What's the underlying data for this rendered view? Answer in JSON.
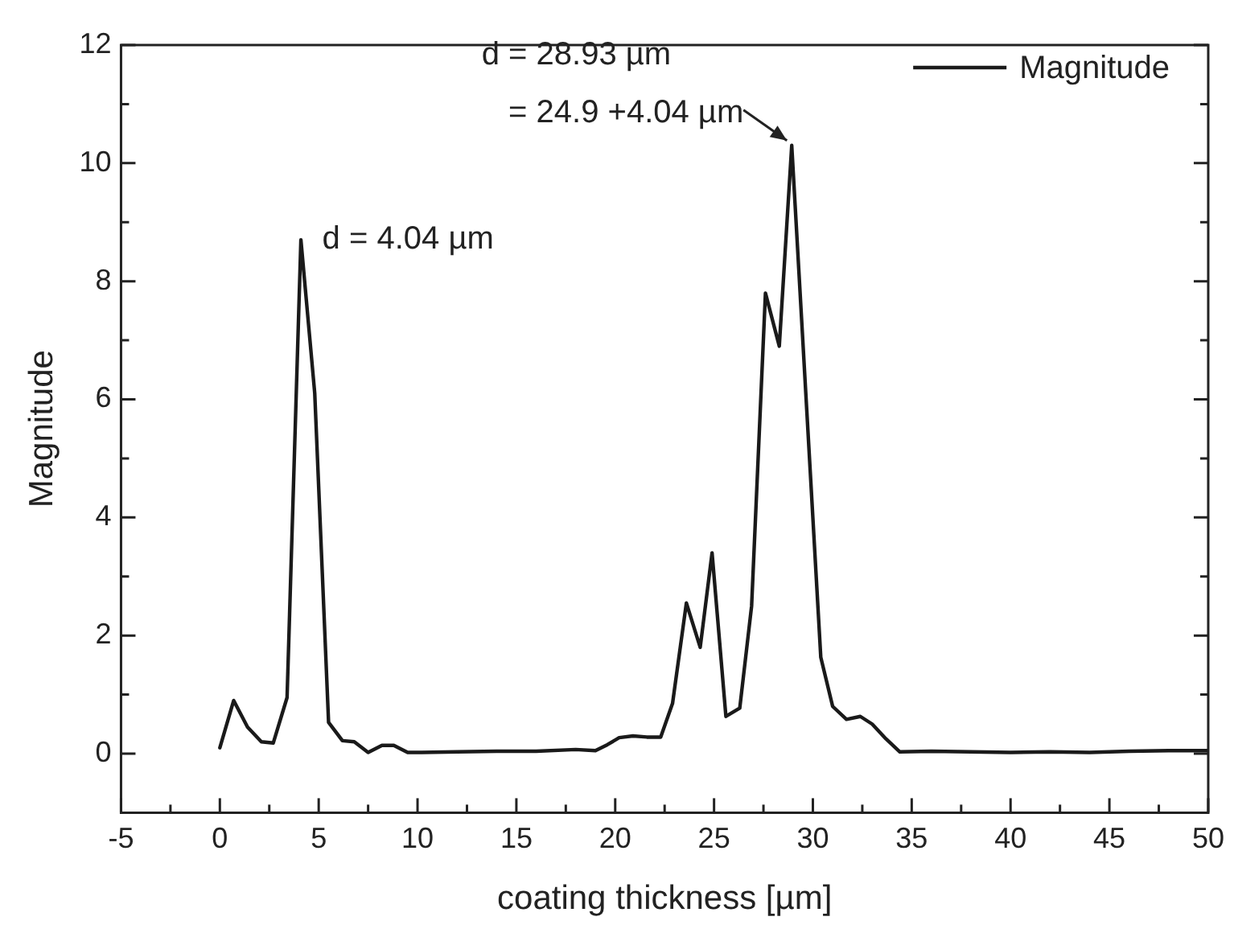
{
  "chart_data": {
    "type": "line",
    "xlabel": "coating thickness [µm]",
    "ylabel": "Magnitude",
    "x": [
      0,
      0.7,
      1.4,
      2.1,
      2.7,
      3.4,
      4.1,
      4.8,
      5.5,
      6.2,
      6.8,
      7.5,
      8.2,
      8.8,
      9.5,
      10.2,
      12,
      14,
      16,
      18,
      19,
      19.6,
      20.2,
      20.9,
      21.6,
      22.3,
      22.9,
      23.6,
      24.3,
      24.9,
      25.6,
      26.3,
      26.9,
      27.6,
      28.3,
      28.93,
      30.4,
      31.0,
      31.7,
      32.4,
      33.0,
      33.7,
      34.4,
      36,
      38,
      40,
      42,
      44,
      46,
      48,
      50
    ],
    "series": [
      {
        "name": "Magnitude",
        "color": "#1a1a1a",
        "values": [
          0.1,
          0.9,
          0.45,
          0.2,
          0.18,
          0.95,
          8.7,
          6.1,
          0.53,
          0.22,
          0.2,
          0.02,
          0.14,
          0.14,
          0.02,
          0.02,
          0.03,
          0.04,
          0.04,
          0.07,
          0.05,
          0.15,
          0.27,
          0.3,
          0.28,
          0.28,
          0.85,
          2.55,
          1.8,
          3.4,
          0.63,
          0.77,
          2.5,
          7.8,
          6.9,
          10.3,
          1.63,
          0.8,
          0.58,
          0.63,
          0.5,
          0.25,
          0.03,
          0.04,
          0.03,
          0.02,
          0.03,
          0.02,
          0.04,
          0.05,
          0.05
        ]
      }
    ],
    "xlim": [
      -5,
      50
    ],
    "xticks": [
      -5,
      {
        "value": -2.5,
        "label": null
      },
      0,
      {
        "value": 2.5,
        "label": null
      },
      5,
      {
        "value": 7.5,
        "label": null
      },
      10,
      {
        "value": 12.5,
        "label": null
      },
      15,
      {
        "value": 17.5,
        "label": null
      },
      20,
      {
        "value": 22.5,
        "label": null
      },
      25,
      {
        "value": 27.5,
        "label": null
      },
      30,
      {
        "value": 32.5,
        "label": null
      },
      35,
      {
        "value": 37.5,
        "label": null
      },
      40,
      {
        "value": 42.5,
        "label": null
      },
      45,
      {
        "value": 47.5,
        "label": null
      },
      50
    ],
    "ylim": [
      -1,
      12
    ],
    "yticks": [
      {
        "value": -1,
        "label": null
      },
      0,
      {
        "value": 1,
        "label": null
      },
      2,
      {
        "value": 3,
        "label": null
      },
      4,
      {
        "value": 5,
        "label": null
      },
      6,
      {
        "value": 7,
        "label": null
      },
      8,
      {
        "value": 9,
        "label": null
      },
      10,
      {
        "value": 11,
        "label": null
      },
      12
    ],
    "annotations": [
      {
        "text": "d = 4.04 µm",
        "x": 4.04,
        "y": 8.7
      },
      {
        "text": "d = 28.93 µm\n= 24.9 +4.04 µm",
        "x": 28.93,
        "y": 10.3
      }
    ],
    "legend": "top right",
    "grid": false,
    "marker": "none",
    "line_style": "solid"
  }
}
